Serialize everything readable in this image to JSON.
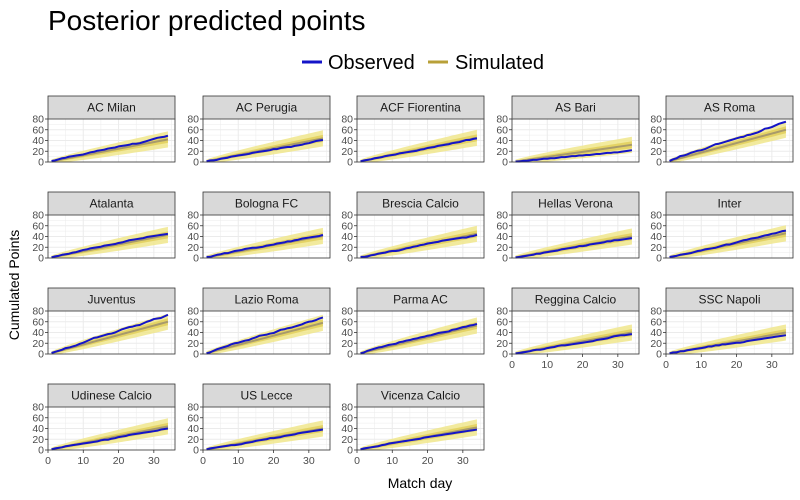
{
  "chart_data": {
    "type": "line",
    "title": "Posterior predicted points",
    "xlabel": "Match day",
    "ylabel": "Cumulated Points",
    "xlim": [
      0,
      36
    ],
    "ylim": [
      0,
      80
    ],
    "x_ticks": [
      0,
      10,
      20,
      30
    ],
    "y_ticks": [
      0,
      20,
      40,
      60,
      80
    ],
    "legend_position": "top",
    "legend": [
      {
        "name": "Observed",
        "color": "#1414c8"
      },
      {
        "name": "Simulated",
        "color": "#b8a038"
      }
    ],
    "colors": {
      "observed": "#1414c8",
      "band_outer": "#f0e68c",
      "band_inner": "#e2cf5c",
      "median": "#a89a6a",
      "strip_fill": "#d9d9d9",
      "panel_border": "#333333",
      "grid": "#ebebeb"
    },
    "matchdays": 34,
    "panels": [
      {
        "team": "AC Milan",
        "observed_final": 49,
        "simulated_median_final": 42
      },
      {
        "team": "AC Perugia",
        "observed_final": 41,
        "simulated_median_final": 44
      },
      {
        "team": "ACF Fiorentina",
        "observed_final": 44,
        "simulated_median_final": 45
      },
      {
        "team": "AS Bari",
        "observed_final": 22,
        "simulated_median_final": 32
      },
      {
        "team": "AS Roma",
        "observed_final": 75,
        "simulated_median_final": 60
      },
      {
        "team": "Atalanta",
        "observed_final": 45,
        "simulated_median_final": 43
      },
      {
        "team": "Bologna FC",
        "observed_final": 43,
        "simulated_median_final": 41
      },
      {
        "team": "Brescia Calcio",
        "observed_final": 43,
        "simulated_median_final": 45
      },
      {
        "team": "Hellas Verona",
        "observed_final": 37,
        "simulated_median_final": 40
      },
      {
        "team": "Inter",
        "observed_final": 51,
        "simulated_median_final": 46
      },
      {
        "team": "Juventus",
        "observed_final": 73,
        "simulated_median_final": 60
      },
      {
        "team": "Lazio Roma",
        "observed_final": 68,
        "simulated_median_final": 58
      },
      {
        "team": "Parma AC",
        "observed_final": 56,
        "simulated_median_final": 53
      },
      {
        "team": "Reggina Calcio",
        "observed_final": 37,
        "simulated_median_final": 40
      },
      {
        "team": "SSC Napoli",
        "observed_final": 35,
        "simulated_median_final": 40
      },
      {
        "team": "Udinese Calcio",
        "observed_final": 40,
        "simulated_median_final": 44
      },
      {
        "team": "US Lecce",
        "observed_final": 38,
        "simulated_median_final": 40
      },
      {
        "team": "Vicenza Calcio",
        "observed_final": 38,
        "simulated_median_final": 42
      }
    ]
  }
}
